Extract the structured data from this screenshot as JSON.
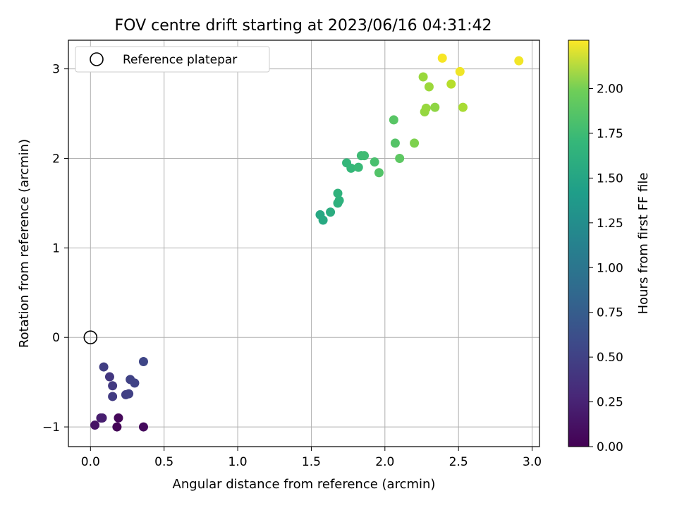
{
  "chart_data": {
    "type": "scatter",
    "title": "FOV centre drift starting at 2023/06/16 04:31:42",
    "xlabel": "Angular distance from reference (arcmin)",
    "ylabel": "Rotation from reference (arcmin)",
    "xlim": [
      -0.15,
      3.05
    ],
    "ylim": [
      -1.22,
      3.32
    ],
    "xticks": [
      "0.0",
      "0.5",
      "1.0",
      "1.5",
      "2.0",
      "2.5",
      "3.0"
    ],
    "yticks": [
      "−1",
      "0",
      "1",
      "2",
      "3"
    ],
    "grid": true,
    "legend": {
      "position": "top-left",
      "entries": [
        "Reference platepar"
      ]
    },
    "reference_point": {
      "x": 0.0,
      "y": 0.0,
      "label": "Reference platepar"
    },
    "colorbar": {
      "label": "Hours from first FF file",
      "colormap": "viridis",
      "range": [
        0.0,
        2.27
      ],
      "ticks": [
        "0.00",
        "0.25",
        "0.50",
        "0.75",
        "1.00",
        "1.25",
        "1.50",
        "1.75",
        "2.00"
      ]
    },
    "points": [
      {
        "x": 0.03,
        "y": -0.98,
        "c": 0.12
      },
      {
        "x": 0.07,
        "y": -0.9,
        "c": 0.17
      },
      {
        "x": 0.08,
        "y": -0.9,
        "c": 0.19
      },
      {
        "x": 0.18,
        "y": -1.0,
        "c": 0.02
      },
      {
        "x": 0.19,
        "y": -0.9,
        "c": 0.04
      },
      {
        "x": 0.36,
        "y": -1.0,
        "c": 0.06
      },
      {
        "x": 0.09,
        "y": -0.33,
        "c": 0.42
      },
      {
        "x": 0.13,
        "y": -0.44,
        "c": 0.37
      },
      {
        "x": 0.15,
        "y": -0.54,
        "c": 0.39
      },
      {
        "x": 0.15,
        "y": -0.66,
        "c": 0.4
      },
      {
        "x": 0.24,
        "y": -0.64,
        "c": 0.43
      },
      {
        "x": 0.26,
        "y": -0.63,
        "c": 0.44
      },
      {
        "x": 0.27,
        "y": -0.47,
        "c": 0.45
      },
      {
        "x": 0.3,
        "y": -0.51,
        "c": 0.46
      },
      {
        "x": 0.36,
        "y": -0.27,
        "c": 0.48
      },
      {
        "x": 1.56,
        "y": 1.37,
        "c": 1.36
      },
      {
        "x": 1.58,
        "y": 1.31,
        "c": 1.37
      },
      {
        "x": 1.63,
        "y": 1.4,
        "c": 1.4
      },
      {
        "x": 1.68,
        "y": 1.5,
        "c": 1.44
      },
      {
        "x": 1.69,
        "y": 1.53,
        "c": 1.45
      },
      {
        "x": 1.68,
        "y": 1.61,
        "c": 1.46
      },
      {
        "x": 1.74,
        "y": 1.95,
        "c": 1.5
      },
      {
        "x": 1.77,
        "y": 1.89,
        "c": 1.51
      },
      {
        "x": 1.82,
        "y": 1.9,
        "c": 1.53
      },
      {
        "x": 1.84,
        "y": 2.03,
        "c": 1.55
      },
      {
        "x": 1.86,
        "y": 2.03,
        "c": 1.56
      },
      {
        "x": 1.93,
        "y": 1.96,
        "c": 1.6
      },
      {
        "x": 1.96,
        "y": 1.84,
        "c": 1.64
      },
      {
        "x": 2.06,
        "y": 2.43,
        "c": 1.67
      },
      {
        "x": 2.07,
        "y": 2.17,
        "c": 1.65
      },
      {
        "x": 2.1,
        "y": 2.0,
        "c": 1.69
      },
      {
        "x": 2.2,
        "y": 2.17,
        "c": 1.82
      },
      {
        "x": 2.26,
        "y": 2.91,
        "c": 1.92
      },
      {
        "x": 2.27,
        "y": 2.52,
        "c": 1.9
      },
      {
        "x": 2.28,
        "y": 2.56,
        "c": 1.91
      },
      {
        "x": 2.3,
        "y": 2.8,
        "c": 1.93
      },
      {
        "x": 2.34,
        "y": 2.57,
        "c": 1.88
      },
      {
        "x": 2.45,
        "y": 2.83,
        "c": 2.02
      },
      {
        "x": 2.53,
        "y": 2.57,
        "c": 1.97
      },
      {
        "x": 2.39,
        "y": 3.12,
        "c": 2.25
      },
      {
        "x": 2.51,
        "y": 2.97,
        "c": 2.22
      },
      {
        "x": 2.91,
        "y": 3.09,
        "c": 2.23
      }
    ]
  }
}
